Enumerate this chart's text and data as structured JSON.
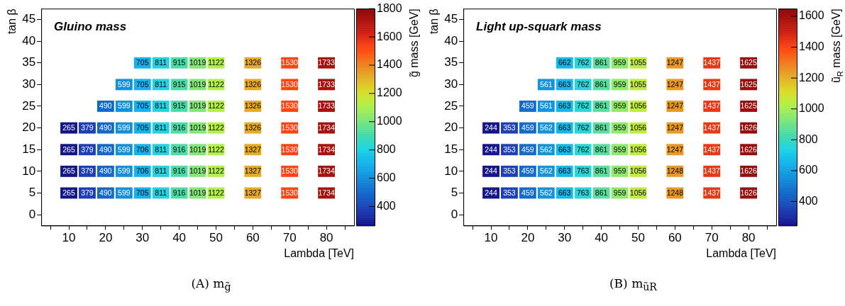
{
  "chart_data": [
    {
      "type": "heatmap",
      "title": "Gluino mass",
      "xlabel": "Lambda [TeV]",
      "ylabel": "tan β",
      "clabel": "g̃ mass [GeV]",
      "data_labels": true,
      "clim": [
        265,
        1800
      ],
      "cticks": [
        400,
        600,
        800,
        1000,
        1200,
        1400,
        1600,
        1800
      ],
      "annotations": [
        "(A) m$_{g̃}$"
      ],
      "categories": [
        null,
        "10",
        null,
        "20",
        null,
        "30",
        null,
        "40",
        null,
        "50",
        null,
        "60",
        null,
        "70",
        null,
        "80",
        null
      ],
      "y_categories": [
        "45",
        "40",
        "35",
        "30",
        "25",
        "20",
        "15",
        "10",
        "5",
        "0"
      ],
      "cells": [
        [
          null,
          null,
          null,
          null,
          null,
          null,
          null,
          null,
          null,
          null,
          null,
          null,
          null,
          null,
          null,
          null,
          null
        ],
        [
          null,
          null,
          null,
          null,
          null,
          null,
          null,
          null,
          null,
          null,
          null,
          null,
          null,
          null,
          null,
          null,
          null
        ],
        [
          null,
          null,
          null,
          null,
          null,
          705,
          811,
          915,
          1019,
          1122,
          null,
          1326,
          null,
          1530,
          null,
          1733,
          null
        ],
        [
          null,
          null,
          null,
          null,
          599,
          705,
          811,
          915,
          1019,
          1122,
          null,
          1326,
          null,
          1530,
          null,
          1733,
          null
        ],
        [
          null,
          null,
          null,
          490,
          599,
          705,
          811,
          915,
          1019,
          1122,
          null,
          1326,
          null,
          1530,
          null,
          1733,
          null
        ],
        [
          null,
          265,
          379,
          490,
          599,
          705,
          811,
          916,
          1019,
          1122,
          null,
          1326,
          null,
          1530,
          null,
          1734,
          null
        ],
        [
          null,
          265,
          379,
          490,
          599,
          706,
          811,
          916,
          1019,
          1122,
          null,
          1327,
          null,
          1530,
          null,
          1734,
          null
        ],
        [
          null,
          265,
          379,
          490,
          599,
          706,
          811,
          916,
          1019,
          1122,
          null,
          1327,
          null,
          1530,
          null,
          1734,
          null
        ],
        [
          null,
          265,
          379,
          490,
          599,
          705,
          811,
          916,
          1019,
          1122,
          null,
          1327,
          null,
          1530,
          null,
          1734,
          null
        ],
        [
          null,
          null,
          null,
          null,
          null,
          null,
          null,
          null,
          null,
          null,
          null,
          null,
          null,
          null,
          null,
          null,
          null
        ]
      ]
    },
    {
      "type": "heatmap",
      "title": "Light up-squark mass",
      "xlabel": "Lambda [TeV]",
      "ylabel": "tan β",
      "clabel": "ũ$_{R}$ mass [GeV]",
      "data_labels": true,
      "clim": [
        244,
        1650
      ],
      "cticks": [
        400,
        600,
        800,
        1000,
        1200,
        1400,
        1600
      ],
      "annotations": [
        "(B) m$_{ũR}$"
      ],
      "categories": [
        null,
        "10",
        null,
        "20",
        null,
        "30",
        null,
        "40",
        null,
        "50",
        null,
        "60",
        null,
        "70",
        null,
        "80",
        null
      ],
      "y_categories": [
        "45",
        "40",
        "35",
        "30",
        "25",
        "20",
        "15",
        "10",
        "5",
        "0"
      ],
      "cells": [
        [
          null,
          null,
          null,
          null,
          null,
          null,
          null,
          null,
          null,
          null,
          null,
          null,
          null,
          null,
          null,
          null,
          null
        ],
        [
          null,
          null,
          null,
          null,
          null,
          null,
          null,
          null,
          null,
          null,
          null,
          null,
          null,
          null,
          null,
          null,
          null
        ],
        [
          null,
          null,
          null,
          null,
          null,
          662,
          762,
          861,
          959,
          1055,
          null,
          1247,
          null,
          1437,
          null,
          1625,
          null
        ],
        [
          null,
          null,
          null,
          null,
          561,
          663,
          762,
          861,
          959,
          1055,
          null,
          1247,
          null,
          1437,
          null,
          1625,
          null
        ],
        [
          null,
          null,
          null,
          459,
          561,
          663,
          762,
          861,
          959,
          1056,
          null,
          1247,
          null,
          1437,
          null,
          1625,
          null
        ],
        [
          null,
          244,
          353,
          459,
          562,
          663,
          762,
          861,
          959,
          1056,
          null,
          1247,
          null,
          1437,
          null,
          1626,
          null
        ],
        [
          null,
          244,
          353,
          459,
          562,
          663,
          762,
          861,
          959,
          1056,
          null,
          1247,
          null,
          1437,
          null,
          1626,
          null
        ],
        [
          null,
          244,
          353,
          459,
          562,
          663,
          763,
          861,
          959,
          1056,
          null,
          1248,
          null,
          1437,
          null,
          1626,
          null
        ],
        [
          null,
          244,
          353,
          459,
          562,
          663,
          763,
          861,
          959,
          1056,
          null,
          1248,
          null,
          1437,
          null,
          1626,
          null
        ],
        [
          null,
          null,
          null,
          null,
          null,
          null,
          null,
          null,
          null,
          null,
          null,
          null,
          null,
          null,
          null,
          null,
          null
        ]
      ]
    }
  ]
}
